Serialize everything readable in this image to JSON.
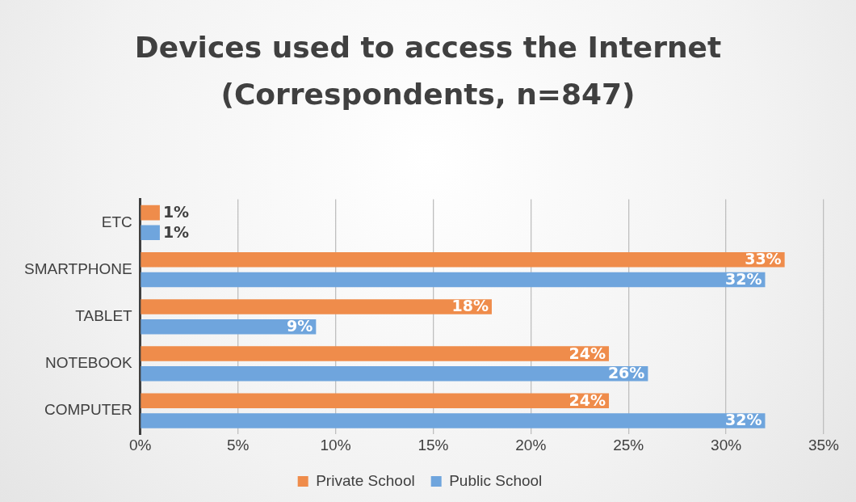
{
  "chart_data": {
    "type": "bar",
    "orientation": "horizontal",
    "title": "Devices used to access the Internet (Correspondents, n=847)",
    "categories": [
      "ETC",
      "SMARTPHONE",
      "TABLET",
      "NOTEBOOK",
      "COMPUTER"
    ],
    "series": [
      {
        "name": "Private School",
        "color": "#ef8c4b",
        "values": [
          1,
          33,
          18,
          24,
          24
        ],
        "value_labels": [
          "1%",
          "33%",
          "18%",
          "24%",
          "24%"
        ]
      },
      {
        "name": "Public School",
        "color": "#6fa5dd",
        "values": [
          1,
          32,
          9,
          26,
          32
        ],
        "value_labels": [
          "1%",
          "32%",
          "9%",
          "26%",
          "32%"
        ]
      }
    ],
    "xlim": [
      0,
      35
    ],
    "xticks": [
      {
        "value": 0,
        "label": "0%"
      },
      {
        "value": 5,
        "label": "5%"
      },
      {
        "value": 10,
        "label": "10%"
      },
      {
        "value": 15,
        "label": "15%"
      },
      {
        "value": 20,
        "label": "20%"
      },
      {
        "value": 25,
        "label": "25%"
      },
      {
        "value": 30,
        "label": "30%"
      },
      {
        "value": 35,
        "label": "35%"
      }
    ],
    "grid": "x",
    "legend": "bottom"
  }
}
